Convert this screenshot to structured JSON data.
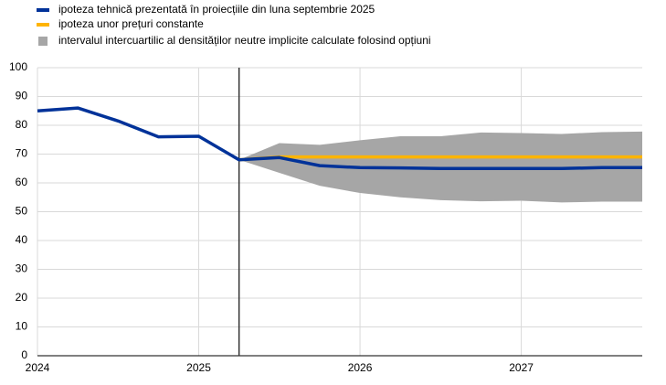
{
  "chart_data": {
    "type": "line",
    "x": [
      2024,
      2024.25,
      2024.5,
      2024.75,
      2025,
      2025.25,
      2025.5,
      2025.75,
      2026,
      2026.25,
      2026.5,
      2026.75,
      2027,
      2027.25,
      2027.5,
      2027.75
    ],
    "series": [
      {
        "name": "ipoteza tehnică prezentată în proiecțiile din luna septembrie 2025",
        "color": "#003299",
        "values": [
          85,
          86,
          81.5,
          76,
          76.2,
          68,
          68.8,
          66,
          65.3,
          65.2,
          65,
          65,
          65,
          65,
          65.3,
          65.3
        ]
      },
      {
        "name": "ipoteza unor prețuri constante",
        "color": "#ffb400",
        "values": [
          null,
          null,
          null,
          null,
          null,
          68,
          69,
          69,
          69,
          69,
          69,
          69,
          69,
          69,
          69,
          69
        ]
      }
    ],
    "band": {
      "name": "intervalul intercuartilic al densităților neutre implicite calculate folosind opțiuni",
      "color": "#a6a6a6",
      "lower": [
        null,
        null,
        null,
        null,
        null,
        68,
        63.5,
        59,
        56.5,
        55,
        54,
        53.6,
        53.8,
        53.2,
        53.5,
        53.5
      ],
      "upper": [
        null,
        null,
        null,
        null,
        null,
        68,
        73.8,
        73.2,
        74.8,
        76.2,
        76.2,
        77.5,
        77.3,
        77,
        77.6,
        77.8
      ]
    },
    "vline": 2025.25,
    "xlim": [
      2024,
      2027.75
    ],
    "xticks": [
      2024,
      2025,
      2026,
      2027
    ],
    "ylim": [
      0,
      100
    ],
    "yticks": [
      0,
      10,
      20,
      30,
      40,
      50,
      60,
      70,
      80,
      90,
      100
    ],
    "grid": true
  }
}
